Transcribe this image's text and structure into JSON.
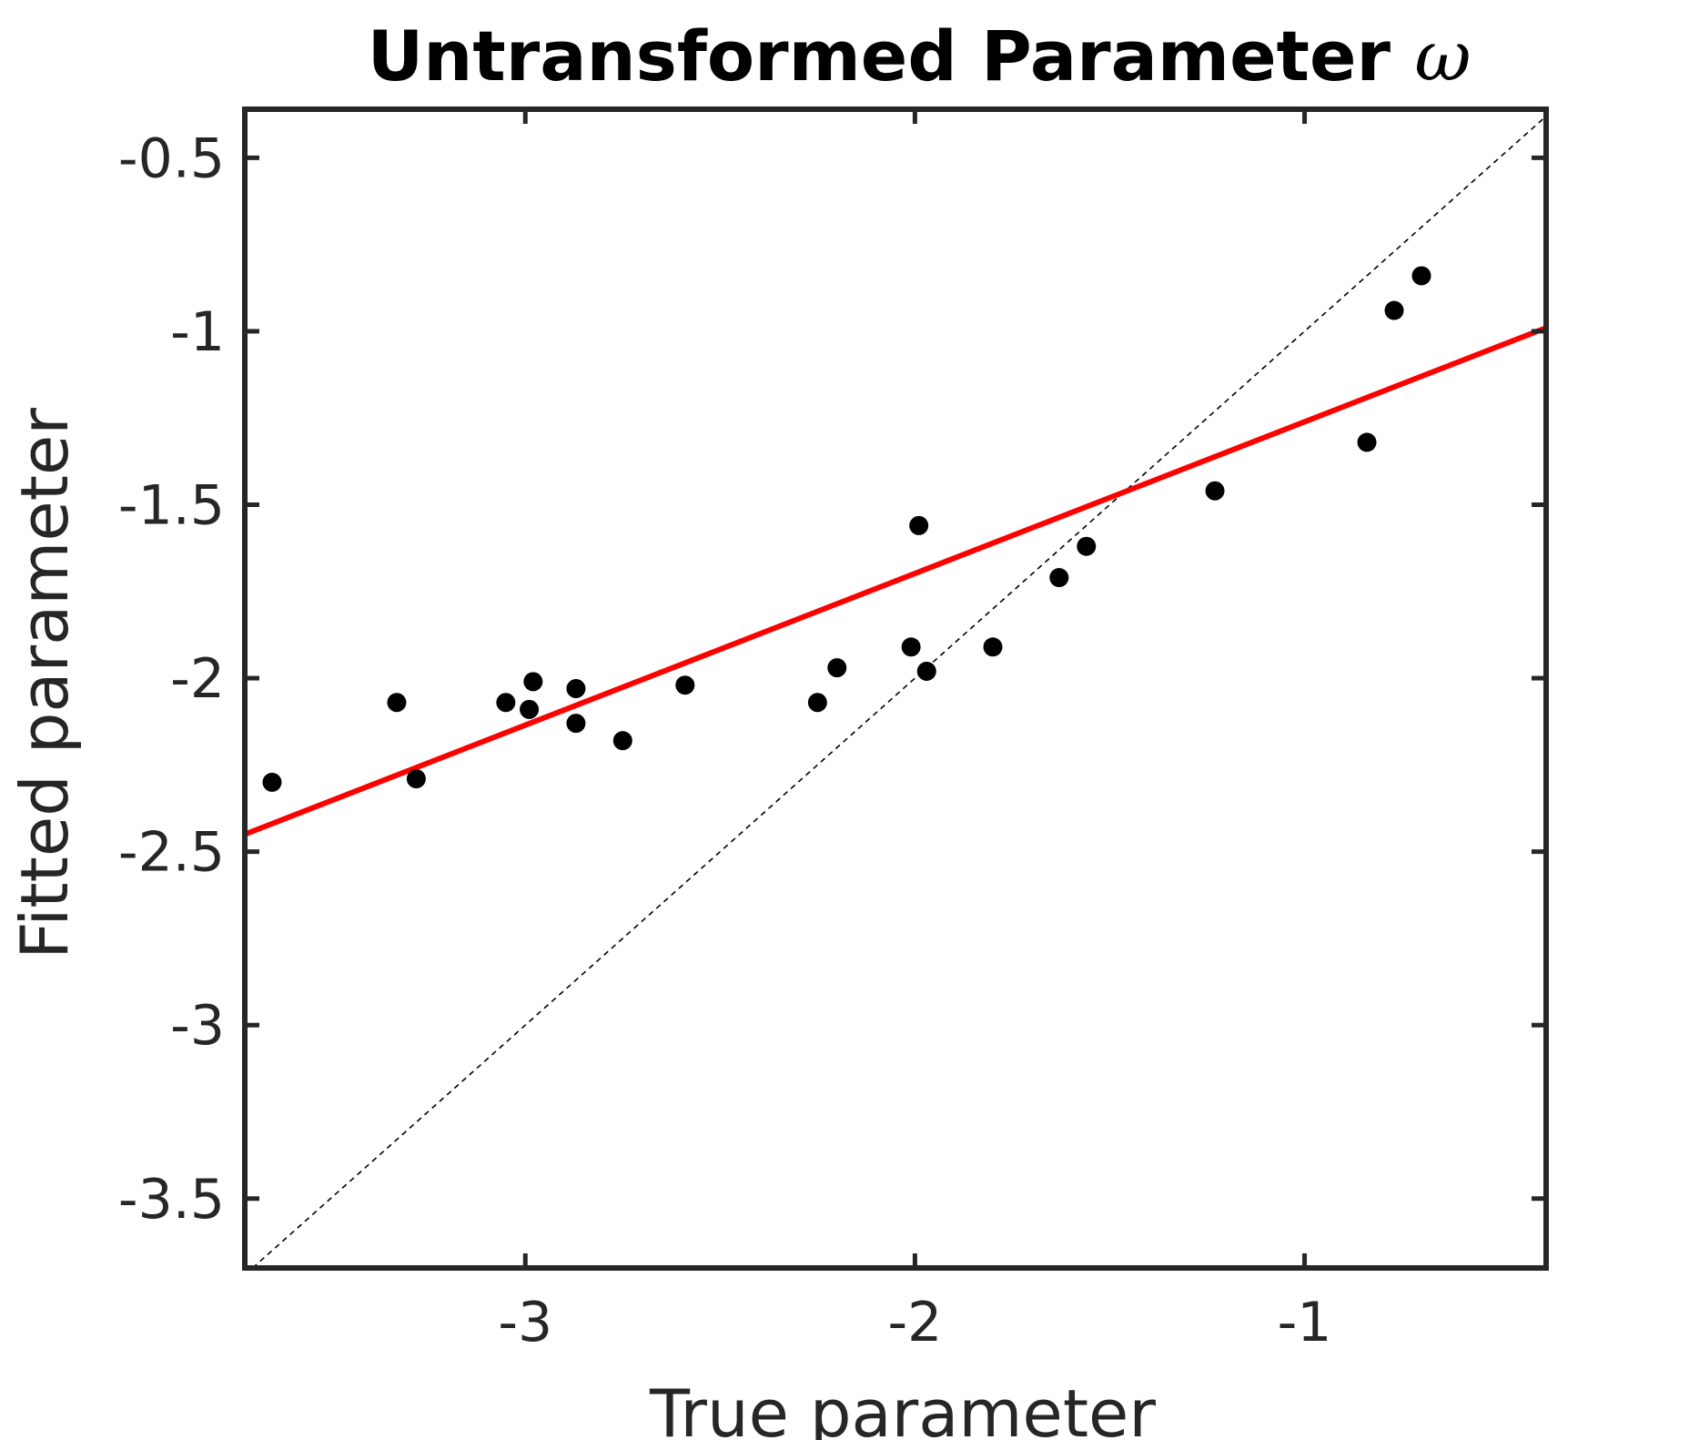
{
  "chart_data": {
    "type": "scatter",
    "title": "Untransformed Parameter ",
    "title_symbol": "ω",
    "xlabel": "True parameter",
    "ylabel": "Fitted parameter",
    "xlim": [
      -3.72,
      -0.38
    ],
    "ylim": [
      -3.7,
      -0.36
    ],
    "xticks": [
      -3,
      -2,
      -1
    ],
    "xtick_labels": [
      "-3",
      "-2",
      "-1"
    ],
    "yticks": [
      -3.5,
      -3,
      -2.5,
      -2,
      -1.5,
      -1,
      -0.5
    ],
    "ytick_labels": [
      "-3.5",
      "-3",
      "-2.5",
      "-2",
      "-1.5",
      "-1",
      "-0.5"
    ],
    "grid": false,
    "series": [
      {
        "kind": "points",
        "color": "#000000",
        "x": [
          -3.65,
          -3.33,
          -3.28,
          -3.05,
          -2.99,
          -2.98,
          -2.87,
          -2.87,
          -2.75,
          -2.59,
          -2.25,
          -2.2,
          -2.01,
          -1.99,
          -1.97,
          -1.8,
          -1.63,
          -1.56,
          -1.23,
          -0.84,
          -0.77,
          -0.7
        ],
        "y": [
          -2.3,
          -2.07,
          -2.29,
          -2.07,
          -2.09,
          -2.01,
          -2.03,
          -2.13,
          -2.18,
          -2.02,
          -2.07,
          -1.97,
          -1.91,
          -1.56,
          -1.98,
          -1.91,
          -1.71,
          -1.62,
          -1.46,
          -1.32,
          -0.94,
          -0.84
        ]
      },
      {
        "kind": "fit-line",
        "color": "#ff0000",
        "x": [
          -3.72,
          -0.38
        ],
        "y": [
          -2.45,
          -0.99
        ]
      },
      {
        "kind": "identity-line",
        "color": "#000000",
        "x": [
          -3.7,
          -0.38
        ],
        "y": [
          -3.7,
          -0.38
        ]
      }
    ],
    "axes_color": "#262626"
  }
}
